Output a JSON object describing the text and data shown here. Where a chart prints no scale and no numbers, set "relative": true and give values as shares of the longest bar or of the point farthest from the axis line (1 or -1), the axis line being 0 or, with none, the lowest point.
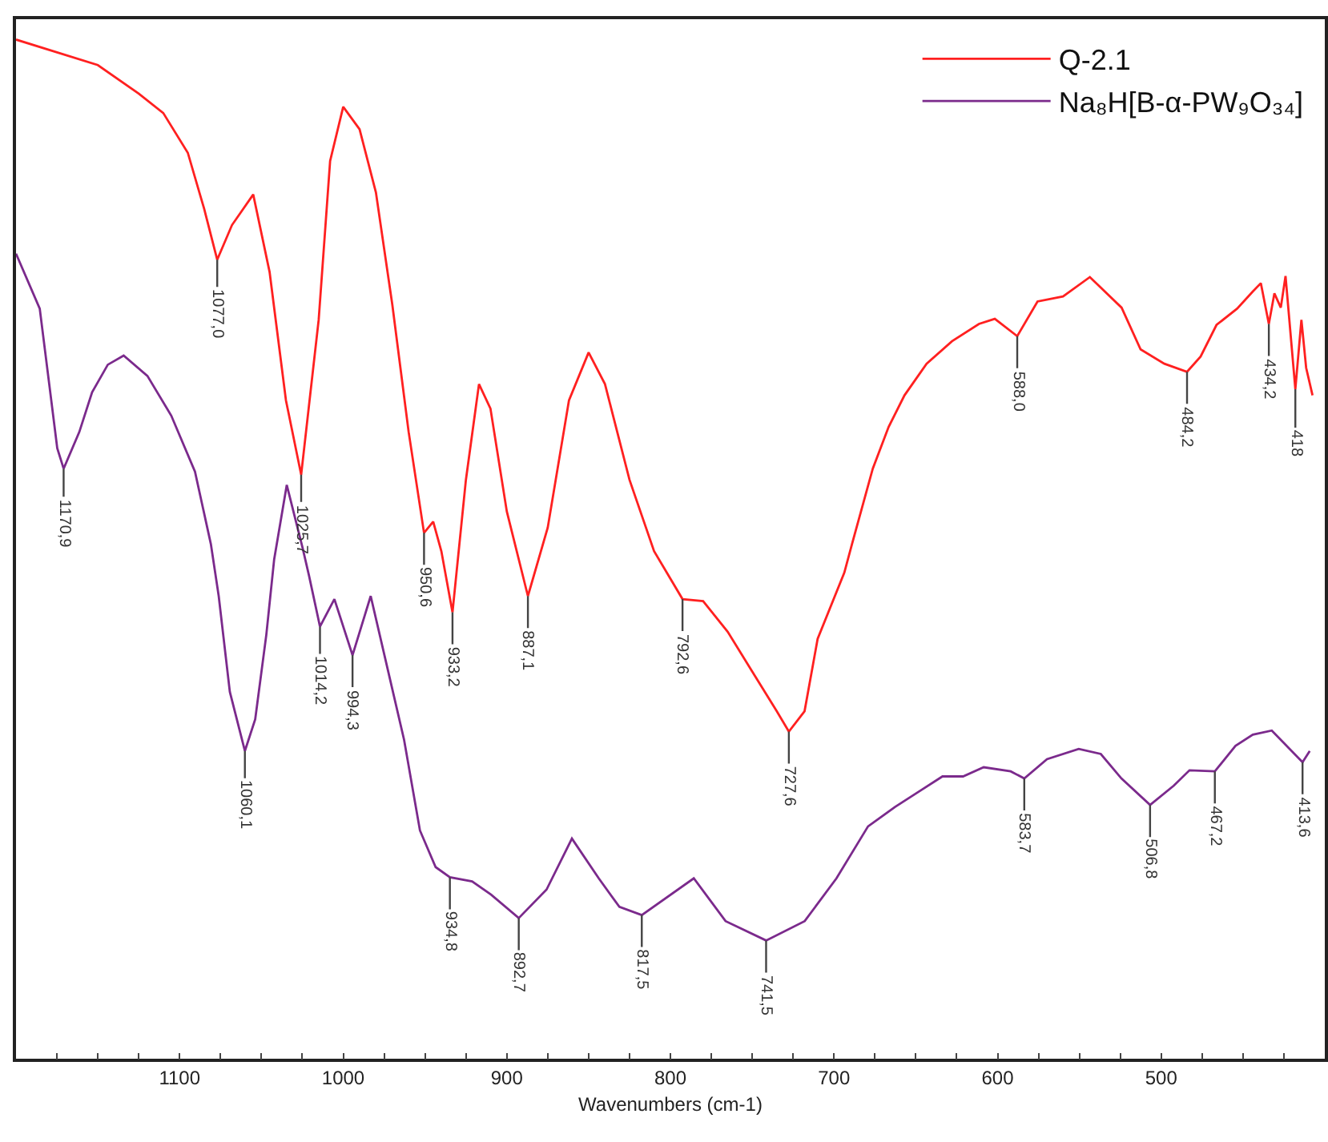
{
  "chart_data": {
    "type": "line",
    "relative": true,
    "xlabel": "Wavenumbers (cm-1)",
    "xlim": [
      1200,
      400
    ],
    "xticks": [
      {
        "value": 1175,
        "label": null
      },
      {
        "value": 1150,
        "label": null
      },
      {
        "value": 1125,
        "label": null
      },
      1100,
      {
        "value": 1075,
        "label": null
      },
      {
        "value": 1050,
        "label": null
      },
      {
        "value": 1025,
        "label": null
      },
      1000,
      {
        "value": 975,
        "label": null
      },
      {
        "value": 950,
        "label": null
      },
      {
        "value": 925,
        "label": null
      },
      900,
      {
        "value": 875,
        "label": null
      },
      {
        "value": 850,
        "label": null
      },
      {
        "value": 825,
        "label": null
      },
      800,
      {
        "value": 775,
        "label": null
      },
      {
        "value": 750,
        "label": null
      },
      {
        "value": 725,
        "label": null
      },
      700,
      {
        "value": 675,
        "label": null
      },
      {
        "value": 650,
        "label": null
      },
      {
        "value": 625,
        "label": null
      },
      600,
      {
        "value": 575,
        "label": null
      },
      {
        "value": 550,
        "label": null
      },
      {
        "value": 525,
        "label": null
      },
      500,
      {
        "value": 475,
        "label": null
      },
      {
        "value": 450,
        "label": null
      },
      {
        "value": 425,
        "label": null
      }
    ],
    "tick_labels": "x",
    "grid": false,
    "legend": "top right",
    "marker": "none",
    "line_style": "solid",
    "series": [
      {
        "name": "Q-2.1",
        "color": "#ff2020",
        "x": [
          1200,
          1150,
          1125,
          1110,
          1095,
          1085,
          1077,
          1068,
          1055,
          1045,
          1035,
          1025.7,
          1015,
          1008,
          1000,
          990,
          980,
          970,
          960,
          950.6,
          945,
          940,
          933.2,
          925,
          917,
          910,
          900,
          887.1,
          875,
          862,
          850,
          840,
          825,
          810,
          792.6,
          780,
          765,
          750,
          735,
          727.6,
          718,
          710,
          693.7,
          689,
          676.3,
          666.6,
          656.9,
          643.4,
          627.9,
          611.4,
          601.7,
          588,
          575.6,
          560,
          543.6,
          524.2,
          512.6,
          498.1,
          484.2,
          475.9,
          466.2,
          453.6,
          443.9,
          439.1,
          434.2,
          430.8,
          426.9,
          424,
          418,
          414.3,
          411.4,
          407.5
        ],
        "values": [
          1.0,
          0.975,
          0.947,
          0.928,
          0.889,
          0.834,
          0.784,
          0.818,
          0.848,
          0.772,
          0.646,
          0.573,
          0.725,
          0.881,
          0.934,
          0.912,
          0.85,
          0.74,
          0.615,
          0.516,
          0.527,
          0.498,
          0.438,
          0.568,
          0.662,
          0.638,
          0.537,
          0.454,
          0.521,
          0.646,
          0.693,
          0.662,
          0.568,
          0.498,
          0.451,
          0.449,
          0.419,
          0.38,
          0.341,
          0.321,
          0.341,
          0.412,
          0.477,
          0.505,
          0.579,
          0.62,
          0.651,
          0.682,
          0.704,
          0.721,
          0.726,
          0.709,
          0.743,
          0.748,
          0.767,
          0.737,
          0.696,
          0.682,
          0.674,
          0.689,
          0.72,
          0.736,
          0.753,
          0.761,
          0.721,
          0.751,
          0.737,
          0.768,
          0.657,
          0.725,
          0.678,
          0.651
        ]
      },
      {
        "name": "Na₈H[B-α-PW₉O₃₄]",
        "color": "#7b2a8c",
        "x": [
          1200,
          1185.5,
          1179.7,
          1174.8,
          1170.9,
          1161.3,
          1153.5,
          1143.9,
          1134.2,
          1119.7,
          1105.1,
          1090.6,
          1080.9,
          1076.1,
          1069.3,
          1060.1,
          1053.8,
          1047,
          1042.2,
          1034.5,
          1024.8,
          1020.9,
          1014.2,
          1005.4,
          994.3,
          983.2,
          972.5,
          962.8,
          953.1,
          943.5,
          934.8,
          921.2,
          909.6,
          892.7,
          875.7,
          860.2,
          843.8,
          831.2,
          817.5,
          785.7,
          766.3,
          741.5,
          717.9,
          698.5,
          679.2,
          662.7,
          647.3,
          633.7,
          621.1,
          608.5,
          592,
          583.7,
          569.8,
          550.4,
          536.9,
          524.3,
          506.8,
          492.3,
          482.7,
          467.2,
          454.6,
          444,
          432.4,
          413.6,
          409.2
        ],
        "values": [
          0.79,
          0.736,
          0.662,
          0.599,
          0.579,
          0.615,
          0.654,
          0.681,
          0.69,
          0.67,
          0.631,
          0.576,
          0.505,
          0.454,
          0.36,
          0.302,
          0.333,
          0.416,
          0.49,
          0.563,
          0.501,
          0.474,
          0.424,
          0.451,
          0.396,
          0.454,
          0.38,
          0.313,
          0.224,
          0.188,
          0.178,
          0.174,
          0.161,
          0.138,
          0.166,
          0.216,
          0.177,
          0.149,
          0.141,
          0.177,
          0.135,
          0.116,
          0.135,
          0.177,
          0.228,
          0.247,
          0.263,
          0.277,
          0.277,
          0.286,
          0.282,
          0.275,
          0.294,
          0.304,
          0.299,
          0.275,
          0.249,
          0.268,
          0.283,
          0.282,
          0.307,
          0.318,
          0.322,
          0.291,
          0.302
        ]
      }
    ],
    "annotations": [
      {
        "text": "1077,0",
        "x": 1077,
        "y": 0.784
      },
      {
        "text": "1025,7",
        "x": 1025.7,
        "y": 0.573
      },
      {
        "text": "950,6",
        "x": 950.6,
        "y": 0.516
      },
      {
        "text": "933,2",
        "x": 933.2,
        "y": 0.438
      },
      {
        "text": "887,1",
        "x": 887.1,
        "y": 0.454
      },
      {
        "text": "792,6",
        "x": 792.6,
        "y": 0.451
      },
      {
        "text": "727,6",
        "x": 727.6,
        "y": 0.321
      },
      {
        "text": "588,0",
        "x": 588,
        "y": 0.709
      },
      {
        "text": "484,2",
        "x": 484.2,
        "y": 0.674
      },
      {
        "text": "434,2",
        "x": 434.2,
        "y": 0.721
      },
      {
        "text": "418",
        "x": 418,
        "y": 0.657
      },
      {
        "text": "1170,9",
        "x": 1170.9,
        "y": 0.579
      },
      {
        "text": "1060,1",
        "x": 1060.1,
        "y": 0.302
      },
      {
        "text": "1014,2",
        "x": 1014.2,
        "y": 0.424
      },
      {
        "text": "994,3",
        "x": 994.3,
        "y": 0.396
      },
      {
        "text": "934,8",
        "x": 934.8,
        "y": 0.178
      },
      {
        "text": "892,7",
        "x": 892.7,
        "y": 0.138
      },
      {
        "text": "817,5",
        "x": 817.5,
        "y": 0.141
      },
      {
        "text": "741,5",
        "x": 741.5,
        "y": 0.116
      },
      {
        "text": "583,7",
        "x": 583.7,
        "y": 0.275
      },
      {
        "text": "506,8",
        "x": 506.8,
        "y": 0.249
      },
      {
        "text": "467,2",
        "x": 467.2,
        "y": 0.282
      },
      {
        "text": "413,6",
        "x": 413.6,
        "y": 0.291
      }
    ]
  }
}
